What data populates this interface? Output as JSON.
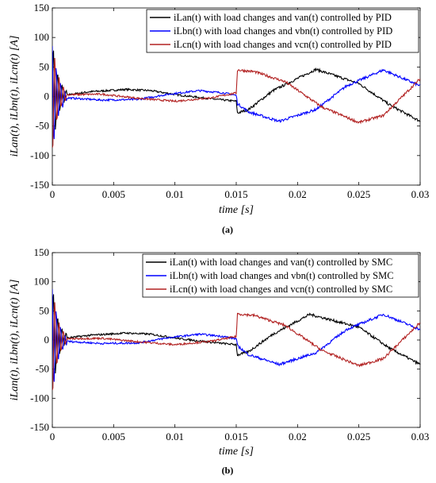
{
  "figure": {
    "panels": [
      {
        "caption": "(a)",
        "xlabel": "time [s]",
        "ylabel": "iLan(t), iLbn(t), iLcn(t) [A]",
        "legend": [
          "iLan(t) with load changes and van(t) controlled by PID",
          "iLbn(t) with load changes and vbn(t) controlled by PID",
          "iLcn(t) with load changes and vcn(t) controlled by PID"
        ]
      },
      {
        "caption": "(b)",
        "xlabel": "time [s]",
        "ylabel": "iLan(t), iLbn(t), iLcn(t) [A]",
        "legend": [
          "iLan(t) with load changes and van(t) controlled by SMC",
          "iLbn(t) with load changes and vbn(t) controlled by SMC",
          "iLcn(t) with load changes and vcn(t) controlled by SMC"
        ]
      }
    ]
  },
  "chart_data": [
    {
      "type": "line",
      "caption": "(a)",
      "xlabel": "time [s]",
      "ylabel": "iLan(t), iLbn(t), iLcn(t) [A]",
      "xlim": [
        0,
        0.03
      ],
      "ylim": [
        -150,
        150
      ],
      "xticks": [
        0,
        0.005,
        0.01,
        0.015,
        0.02,
        0.025,
        0.03
      ],
      "yticks": [
        -150,
        -100,
        -50,
        0,
        50,
        100,
        150
      ],
      "xtick_labels": [
        "0",
        "0.005",
        "0.01",
        "0.015",
        "0.02",
        "0.025",
        "0.03"
      ],
      "ytick_labels": [
        "-150",
        "-100",
        "-50",
        "0",
        "50",
        "100",
        "150"
      ],
      "grid": false,
      "legend_position": "top-right",
      "series": [
        {
          "name": "iLan(t) with load changes and van(t) controlled by PID",
          "color": "#000000",
          "x": [
            0,
            0.001,
            0.003,
            0.006,
            0.008,
            0.0105,
            0.013,
            0.015,
            0.0151,
            0.016,
            0.018,
            0.0215,
            0.025,
            0.0275,
            0.03
          ],
          "y": [
            0,
            2,
            8,
            12,
            10,
            2,
            -4,
            -8,
            -28,
            -22,
            10,
            46,
            22,
            -14,
            -42
          ]
        },
        {
          "name": "iLbn(t) with load changes and vbn(t) controlled by PID",
          "color": "#0000ff",
          "x": [
            0,
            0.001,
            0.004,
            0.007,
            0.0095,
            0.012,
            0.014,
            0.015,
            0.0151,
            0.016,
            0.0185,
            0.0215,
            0.024,
            0.027,
            0.03
          ],
          "y": [
            0,
            -2,
            -6,
            -5,
            4,
            10,
            6,
            2,
            -12,
            -26,
            -42,
            -22,
            18,
            45,
            18
          ]
        },
        {
          "name": "iLcn(t) with load changes and vcn(t) controlled by PID",
          "color": "#b22222",
          "x": [
            0,
            0.001,
            0.004,
            0.007,
            0.01,
            0.013,
            0.015,
            0.0151,
            0.0165,
            0.019,
            0.022,
            0.025,
            0.027,
            0.03
          ],
          "y": [
            0,
            3,
            4,
            -3,
            -8,
            -2,
            6,
            45,
            42,
            25,
            -18,
            -44,
            -32,
            30
          ]
        }
      ]
    },
    {
      "type": "line",
      "caption": "(b)",
      "xlabel": "time [s]",
      "ylabel": "iLan(t), iLbn(t), iLcn(t) [A]",
      "xlim": [
        0,
        0.03
      ],
      "ylim": [
        -150,
        150
      ],
      "xticks": [
        0,
        0.005,
        0.01,
        0.015,
        0.02,
        0.025,
        0.03
      ],
      "yticks": [
        -150,
        -100,
        -50,
        0,
        50,
        100,
        150
      ],
      "xtick_labels": [
        "0",
        "0.005",
        "0.01",
        "0.015",
        "0.02",
        "0.025",
        "0.03"
      ],
      "ytick_labels": [
        "-150",
        "-100",
        "-50",
        "0",
        "50",
        "100",
        "150"
      ],
      "grid": false,
      "legend_position": "top-right",
      "series": [
        {
          "name": "iLan(t) with load changes and van(t) controlled by SMC",
          "color": "#000000",
          "x": [
            0,
            0.001,
            0.003,
            0.006,
            0.008,
            0.0105,
            0.013,
            0.015,
            0.0151,
            0.016,
            0.018,
            0.021,
            0.025,
            0.0275,
            0.03
          ],
          "y": [
            0,
            3,
            8,
            12,
            10,
            2,
            -4,
            -8,
            -26,
            -20,
            10,
            44,
            22,
            -14,
            -42
          ]
        },
        {
          "name": "iLbn(t) with load changes and vbn(t) controlled by SMC",
          "color": "#0000ff",
          "x": [
            0,
            0.001,
            0.004,
            0.007,
            0.0095,
            0.012,
            0.014,
            0.015,
            0.0151,
            0.016,
            0.0185,
            0.0215,
            0.024,
            0.027,
            0.03
          ],
          "y": [
            0,
            -2,
            -6,
            -5,
            4,
            10,
            6,
            2,
            -10,
            -25,
            -42,
            -22,
            18,
            44,
            18
          ]
        },
        {
          "name": "iLcn(t) with load changes and vcn(t) controlled by SMC",
          "color": "#b22222",
          "x": [
            0,
            0.001,
            0.004,
            0.007,
            0.01,
            0.013,
            0.015,
            0.0151,
            0.0165,
            0.019,
            0.022,
            0.025,
            0.027,
            0.03
          ],
          "y": [
            0,
            2,
            3,
            -3,
            -8,
            -2,
            6,
            45,
            42,
            25,
            -18,
            -44,
            -32,
            30
          ]
        }
      ]
    }
  ]
}
